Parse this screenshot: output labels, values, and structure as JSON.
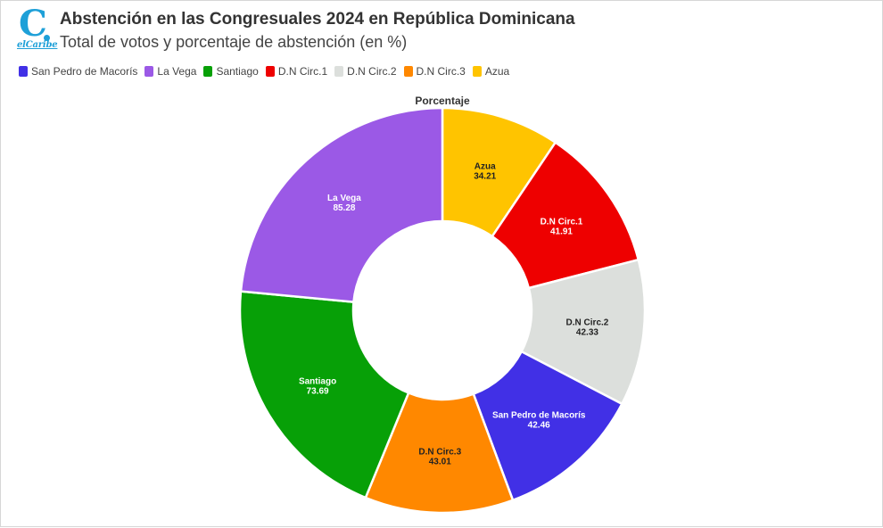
{
  "header": {
    "logo_text": "elCaribe",
    "title": "Abstención en las Congresuales 2024 en República Dominicana",
    "subtitle": "Total de votos y porcentaje de abstención (en %)"
  },
  "chart_data": {
    "type": "pie",
    "title": "Porcentaje",
    "donut": true,
    "categories": [
      "San Pedro de Macorís",
      "La Vega",
      "Santiago",
      "D.N Circ.1",
      "D.N Circ.2",
      "D.N Circ.3",
      "Azua"
    ],
    "legend_colors": [
      "#4130e6",
      "#9b59e6",
      "#07a007",
      "#ee0000",
      "#dcdfdc",
      "#ff8800",
      "#ffc400"
    ],
    "slices": [
      {
        "label": "Azua",
        "value": 34.21,
        "color": "#ffc400",
        "text_color": "#222222"
      },
      {
        "label": "D.N Circ.1",
        "value": 41.91,
        "color": "#ee0000",
        "text_color": "#ffffff"
      },
      {
        "label": "D.N Circ.2",
        "value": 42.33,
        "color": "#dcdfdc",
        "text_color": "#222222"
      },
      {
        "label": "San Pedro de Macorís",
        "value": 42.46,
        "color": "#4130e6",
        "text_color": "#ffffff"
      },
      {
        "label": "D.N Circ.3",
        "value": 43.01,
        "color": "#ff8800",
        "text_color": "#222222"
      },
      {
        "label": "Santiago",
        "value": 73.69,
        "color": "#07a007",
        "text_color": "#ffffff"
      },
      {
        "label": "La Vega",
        "value": 85.28,
        "color": "#9b59e6",
        "text_color": "#ffffff"
      }
    ]
  }
}
